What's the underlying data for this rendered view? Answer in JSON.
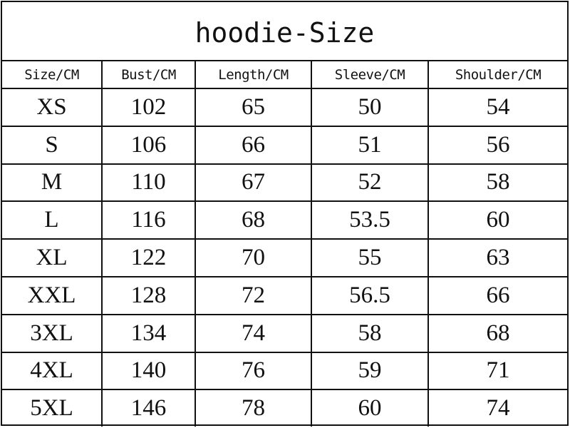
{
  "title": "hoodie-Size",
  "headers": [
    "Size/CM",
    "Bust/CM",
    "Length/CM",
    "Sleeve/CM",
    "Shoulder/CM"
  ],
  "rows": [
    [
      "XS",
      "102",
      "65",
      "50",
      "54"
    ],
    [
      "S",
      "106",
      "66",
      "51",
      "56"
    ],
    [
      "M",
      "110",
      "67",
      "52",
      "58"
    ],
    [
      "L",
      "116",
      "68",
      "53.5",
      "60"
    ],
    [
      "XL",
      "122",
      "70",
      "55",
      "63"
    ],
    [
      "XXL",
      "128",
      "72",
      "56.5",
      "66"
    ],
    [
      "3XL",
      "134",
      "74",
      "58",
      "68"
    ],
    [
      "4XL",
      "140",
      "76",
      "59",
      "71"
    ],
    [
      "5XL",
      "146",
      "78",
      "60",
      "74"
    ]
  ]
}
